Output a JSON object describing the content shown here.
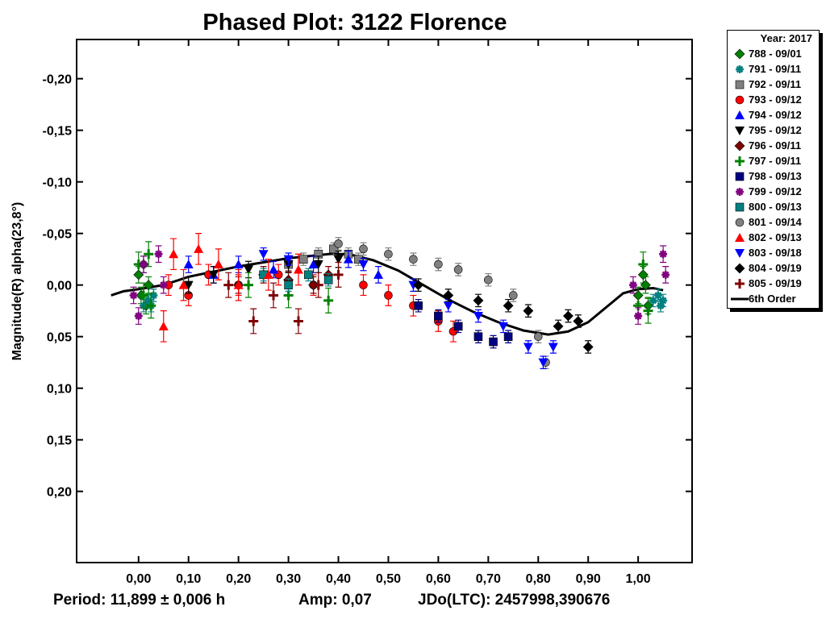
{
  "chart_data": {
    "type": "scatter",
    "title": "Phased Plot: 3122 Florence",
    "xlabel": "",
    "ylabel": "Magnitude(R) alpha(23,8°)",
    "xlim": [
      -0.124,
      1.108
    ],
    "ylim": [
      -0.238,
      0.269
    ],
    "y_inverted": true,
    "x_ticks": [
      "0,00",
      "0,10",
      "0,20",
      "0,30",
      "0,40",
      "0,50",
      "0,60",
      "0,70",
      "0,80",
      "0,90",
      "1,00"
    ],
    "x_tick_values": [
      0,
      0.1,
      0.2,
      0.3,
      0.4,
      0.5,
      0.6,
      0.7,
      0.8,
      0.9,
      1.0
    ],
    "y_ticks": [
      "-0,20",
      "-0,15",
      "-0,10",
      "-0,05",
      "0,00",
      "0,05",
      "0,10",
      "0,15",
      "0,20"
    ],
    "y_tick_values": [
      -0.2,
      -0.15,
      -0.1,
      -0.05,
      0,
      0.05,
      0.1,
      0.15,
      0.2
    ],
    "legend_title": "Year: 2017",
    "legend_placement": "right-outside",
    "series": [
      {
        "name": "788 - 09/01",
        "marker": "diamond",
        "color": "#008000",
        "err": 0.008,
        "points": [
          [
            0.0,
            -0.01
          ],
          [
            0.005,
            0.01
          ],
          [
            0.01,
            -0.02
          ],
          [
            0.015,
            0.02
          ],
          [
            0.02,
            0.0
          ],
          [
            1.0,
            0.01
          ],
          [
            1.01,
            -0.01
          ],
          [
            1.02,
            0.02
          ],
          [
            1.015,
            0.0
          ]
        ]
      },
      {
        "name": "791 - 09/11",
        "marker": "asterisk",
        "color": "#008080",
        "err": 0.006,
        "points": [
          [
            0.01,
            0.02
          ],
          [
            0.02,
            0.015
          ],
          [
            0.03,
            0.01
          ],
          [
            0.025,
            0.02
          ],
          [
            1.03,
            0.015
          ],
          [
            1.04,
            0.01
          ],
          [
            1.05,
            0.015
          ],
          [
            1.045,
            0.02
          ]
        ]
      },
      {
        "name": "792 - 09/11",
        "marker": "square",
        "color": "#808080",
        "err": 0.006,
        "points": [
          [
            0.3,
            -0.02
          ],
          [
            0.33,
            -0.025
          ],
          [
            0.36,
            -0.03
          ],
          [
            0.39,
            -0.035
          ],
          [
            0.42,
            -0.03
          ],
          [
            0.44,
            -0.025
          ]
        ]
      },
      {
        "name": "793 - 09/12",
        "marker": "circle",
        "color": "#ff0000",
        "err": 0.01,
        "points": [
          [
            0.06,
            0.0
          ],
          [
            0.1,
            0.01
          ],
          [
            0.14,
            -0.01
          ],
          [
            0.2,
            0.0
          ],
          [
            0.28,
            -0.01
          ],
          [
            0.35,
            0.0
          ],
          [
            0.45,
            0.0
          ],
          [
            0.5,
            0.01
          ],
          [
            0.55,
            0.02
          ],
          [
            0.6,
            0.035
          ],
          [
            0.63,
            0.045
          ]
        ]
      },
      {
        "name": "794 - 09/12",
        "marker": "triangle-up",
        "color": "#0000ff",
        "err": 0.008,
        "points": [
          [
            0.1,
            -0.02
          ],
          [
            0.15,
            -0.01
          ],
          [
            0.2,
            -0.02
          ],
          [
            0.27,
            -0.015
          ],
          [
            0.35,
            -0.02
          ],
          [
            0.42,
            -0.025
          ],
          [
            0.48,
            -0.01
          ]
        ]
      },
      {
        "name": "795 - 09/12",
        "marker": "triangle-down",
        "color": "#000000",
        "err": 0.008,
        "points": [
          [
            0.1,
            0.0
          ],
          [
            0.15,
            -0.01
          ],
          [
            0.22,
            -0.015
          ],
          [
            0.3,
            -0.02
          ],
          [
            0.36,
            -0.02
          ],
          [
            0.4,
            -0.025
          ]
        ]
      },
      {
        "name": "796 - 09/11",
        "marker": "diamond",
        "color": "#800000",
        "err": 0.008,
        "points": [
          [
            0.2,
            0.0
          ],
          [
            0.25,
            -0.01
          ],
          [
            0.3,
            -0.005
          ],
          [
            0.35,
            0.0
          ],
          [
            0.38,
            -0.01
          ]
        ]
      },
      {
        "name": "797 - 09/11",
        "marker": "plus",
        "color": "#008000",
        "err": 0.012,
        "points": [
          [
            0.0,
            -0.02
          ],
          [
            0.01,
            0.01
          ],
          [
            0.02,
            -0.03
          ],
          [
            0.025,
            0.02
          ],
          [
            0.22,
            0.0
          ],
          [
            0.3,
            0.01
          ],
          [
            0.38,
            0.015
          ],
          [
            1.0,
            0.02
          ],
          [
            1.01,
            -0.02
          ],
          [
            1.02,
            0.025
          ]
        ]
      },
      {
        "name": "798 - 09/13",
        "marker": "square",
        "color": "#000080",
        "err": 0.006,
        "points": [
          [
            0.56,
            0.02
          ],
          [
            0.6,
            0.03
          ],
          [
            0.64,
            0.04
          ],
          [
            0.68,
            0.05
          ],
          [
            0.71,
            0.055
          ],
          [
            0.74,
            0.05
          ]
        ]
      },
      {
        "name": "799 - 09/12",
        "marker": "asterisk",
        "color": "#800080",
        "err": 0.008,
        "points": [
          [
            -0.01,
            0.01
          ],
          [
            0.0,
            0.03
          ],
          [
            0.01,
            -0.02
          ],
          [
            0.04,
            -0.03
          ],
          [
            0.05,
            0.0
          ],
          [
            0.99,
            0.0
          ],
          [
            1.0,
            0.03
          ],
          [
            1.05,
            -0.03
          ],
          [
            1.055,
            -0.01
          ]
        ]
      },
      {
        "name": "800 - 09/13",
        "marker": "square",
        "color": "#008080",
        "err": 0.006,
        "points": [
          [
            0.25,
            -0.01
          ],
          [
            0.3,
            0.0
          ],
          [
            0.34,
            -0.01
          ],
          [
            0.38,
            -0.005
          ]
        ]
      },
      {
        "name": "801 - 09/14",
        "marker": "circle",
        "color": "#808080",
        "err": 0.006,
        "points": [
          [
            0.4,
            -0.04
          ],
          [
            0.45,
            -0.035
          ],
          [
            0.5,
            -0.03
          ],
          [
            0.55,
            -0.025
          ],
          [
            0.6,
            -0.02
          ],
          [
            0.64,
            -0.015
          ],
          [
            0.7,
            -0.005
          ],
          [
            0.75,
            0.01
          ],
          [
            0.8,
            0.05
          ],
          [
            0.815,
            0.075
          ]
        ]
      },
      {
        "name": "802 - 09/13",
        "marker": "triangle-up",
        "color": "#ff0000",
        "err": 0.015,
        "points": [
          [
            0.05,
            0.04
          ],
          [
            0.07,
            -0.03
          ],
          [
            0.09,
            0.0
          ],
          [
            0.12,
            -0.035
          ],
          [
            0.16,
            -0.02
          ],
          [
            0.2,
            0.0
          ],
          [
            0.26,
            -0.01
          ],
          [
            0.32,
            -0.015
          ]
        ]
      },
      {
        "name": "803 - 09/18",
        "marker": "triangle-down",
        "color": "#0000ff",
        "err": 0.006,
        "points": [
          [
            0.25,
            -0.03
          ],
          [
            0.3,
            -0.025
          ],
          [
            0.45,
            -0.02
          ],
          [
            0.55,
            0.0
          ],
          [
            0.62,
            0.02
          ],
          [
            0.68,
            0.03
          ],
          [
            0.73,
            0.04
          ],
          [
            0.78,
            0.06
          ],
          [
            0.81,
            0.075
          ],
          [
            0.83,
            0.06
          ]
        ]
      },
      {
        "name": "804 - 09/19",
        "marker": "diamond",
        "color": "#000000",
        "err": 0.006,
        "points": [
          [
            0.56,
            0.0
          ],
          [
            0.62,
            0.01
          ],
          [
            0.68,
            0.015
          ],
          [
            0.74,
            0.02
          ],
          [
            0.78,
            0.025
          ],
          [
            0.84,
            0.04
          ],
          [
            0.86,
            0.03
          ],
          [
            0.88,
            0.035
          ],
          [
            0.9,
            0.06
          ]
        ]
      },
      {
        "name": "805 - 09/19",
        "marker": "plus",
        "color": "#800000",
        "err": 0.012,
        "points": [
          [
            0.18,
            0.0
          ],
          [
            0.23,
            0.035
          ],
          [
            0.27,
            0.01
          ],
          [
            0.32,
            0.035
          ],
          [
            0.36,
            0.0
          ],
          [
            0.4,
            -0.01
          ]
        ]
      }
    ],
    "fit": {
      "name": "6th Order",
      "color": "#000000",
      "points": [
        [
          -0.055,
          0.01
        ],
        [
          -0.03,
          0.006
        ],
        [
          0.0,
          0.004
        ],
        [
          0.05,
          0.0
        ],
        [
          0.1,
          -0.008
        ],
        [
          0.2,
          -0.018
        ],
        [
          0.3,
          -0.026
        ],
        [
          0.38,
          -0.03
        ],
        [
          0.42,
          -0.03
        ],
        [
          0.47,
          -0.024
        ],
        [
          0.52,
          -0.014
        ],
        [
          0.57,
          0.0
        ],
        [
          0.62,
          0.014
        ],
        [
          0.67,
          0.026
        ],
        [
          0.72,
          0.036
        ],
        [
          0.77,
          0.044
        ],
        [
          0.82,
          0.048
        ],
        [
          0.86,
          0.045
        ],
        [
          0.9,
          0.036
        ],
        [
          0.94,
          0.02
        ],
        [
          0.97,
          0.008
        ],
        [
          1.0,
          0.004
        ],
        [
          1.03,
          0.003
        ],
        [
          1.05,
          0.005
        ]
      ]
    }
  },
  "footer": {
    "period": "Period: 11,899 ± 0,006 h",
    "amp": "Amp: 0,07",
    "jdo": "JDo(LTC): 2457998,390676"
  }
}
